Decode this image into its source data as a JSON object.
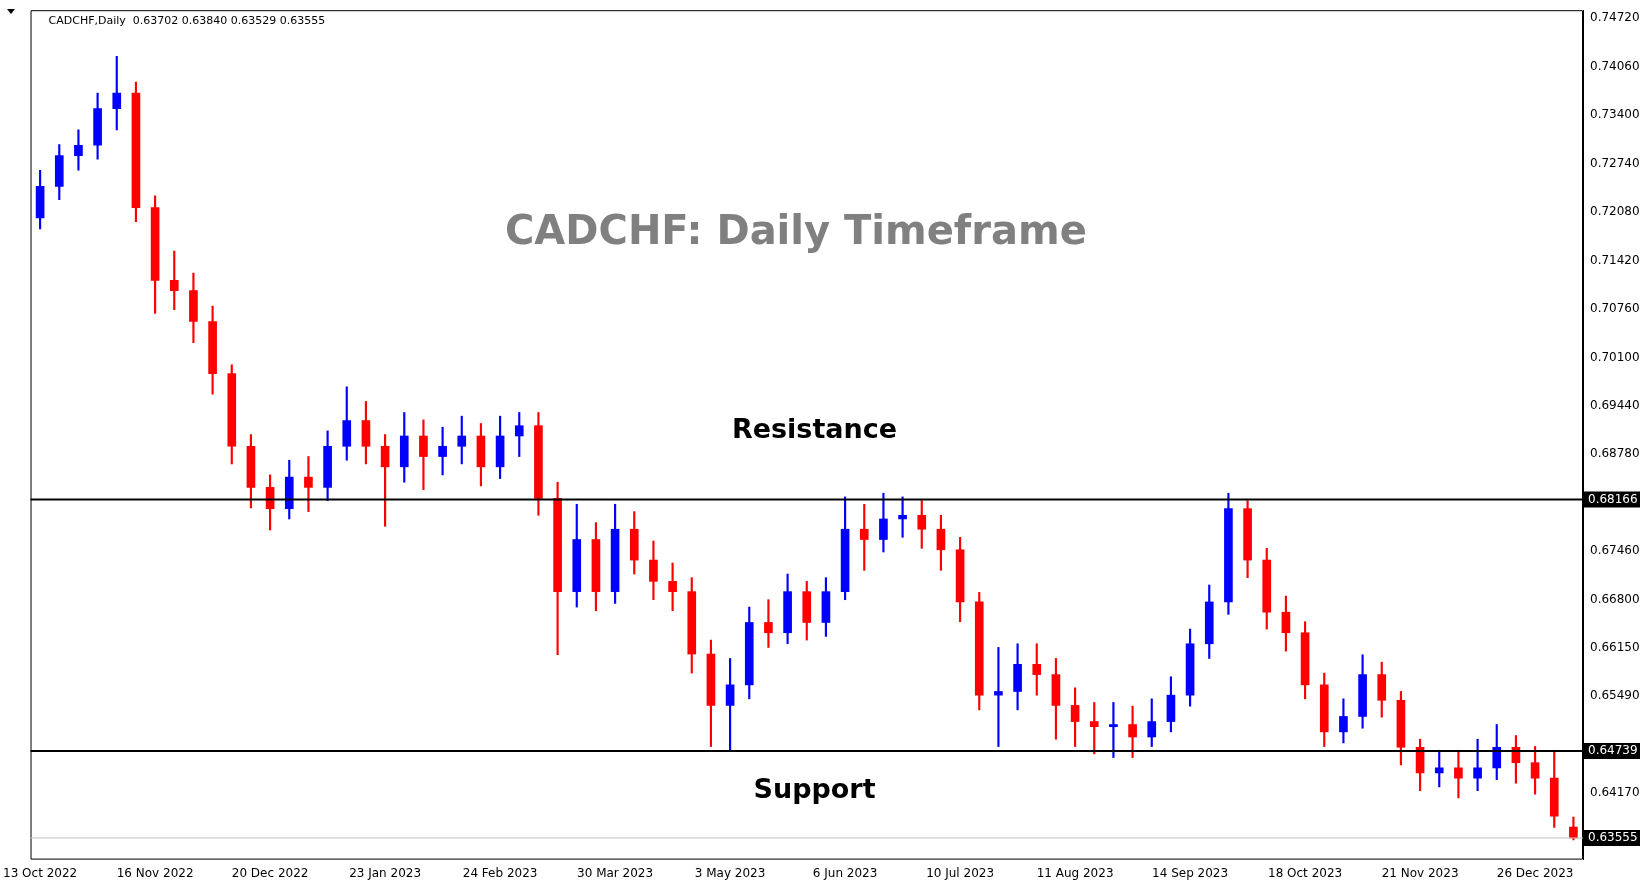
{
  "chart_data": {
    "type": "candlestick",
    "title": "CADCHF: Daily Timeframe",
    "subtitle": "CADCHF,Daily  0.63702 0.63840 0.63529 0.63555",
    "categories": [
      "13 Oct 2022",
      null,
      null,
      null,
      null,
      null,
      "16 Nov 2022",
      null,
      null,
      null,
      null,
      null,
      "20 Dec 2022",
      null,
      null,
      null,
      null,
      null,
      "23 Jan 2023",
      null,
      null,
      null,
      null,
      null,
      "24 Feb 2023",
      null,
      null,
      null,
      null,
      null,
      "30 Mar 2023",
      null,
      null,
      null,
      null,
      null,
      "3 May 2023",
      null,
      null,
      null,
      null,
      null,
      "6 Jun 2023",
      null,
      null,
      null,
      null,
      null,
      "10 Jul 2023",
      null,
      null,
      null,
      null,
      null,
      "11 Aug 2023",
      null,
      null,
      null,
      null,
      null,
      "14 Sep 2023",
      null,
      null,
      null,
      null,
      null,
      "18 Oct 2023",
      null,
      null,
      null,
      null,
      null,
      "21 Nov 2023",
      null,
      null,
      null,
      null,
      null,
      "26 Dec 2023",
      null,
      null
    ],
    "ohlc": [
      [
        0.72,
        0.7265,
        0.7185,
        0.7243
      ],
      [
        0.7243,
        0.73,
        0.7225,
        0.7285
      ],
      [
        0.7285,
        0.732,
        0.7265,
        0.7299
      ],
      [
        0.7299,
        0.737,
        0.728,
        0.7349
      ],
      [
        0.7349,
        0.742,
        0.732,
        0.737
      ],
      [
        0.737,
        0.7385,
        0.7195,
        0.7214
      ],
      [
        0.7214,
        0.723,
        0.707,
        0.7115
      ],
      [
        0.7115,
        0.7155,
        0.7075,
        0.7101
      ],
      [
        0.7101,
        0.7125,
        0.703,
        0.7059
      ],
      [
        0.7059,
        0.708,
        0.696,
        0.6988
      ],
      [
        0.6988,
        0.7,
        0.6865,
        0.6889
      ],
      [
        0.6889,
        0.6905,
        0.6805,
        0.6833
      ],
      [
        0.6833,
        0.685,
        0.6775,
        0.6804
      ],
      [
        0.6804,
        0.687,
        0.679,
        0.6847
      ],
      [
        0.6847,
        0.6875,
        0.68,
        0.6833
      ],
      [
        0.6833,
        0.691,
        0.6815,
        0.6889
      ],
      [
        0.6889,
        0.697,
        0.687,
        0.6924
      ],
      [
        0.6924,
        0.695,
        0.6865,
        0.6889
      ],
      [
        0.6889,
        0.6905,
        0.678,
        0.6861
      ],
      [
        0.6861,
        0.6935,
        0.684,
        0.6903
      ],
      [
        0.6903,
        0.6925,
        0.683,
        0.6875
      ],
      [
        0.6875,
        0.6915,
        0.685,
        0.6889
      ],
      [
        0.6889,
        0.693,
        0.6865,
        0.6903
      ],
      [
        0.6903,
        0.692,
        0.6835,
        0.6861
      ],
      [
        0.6861,
        0.693,
        0.6845,
        0.6903
      ],
      [
        0.6903,
        0.6935,
        0.6875,
        0.6917
      ],
      [
        0.6917,
        0.6935,
        0.6795,
        0.6818
      ],
      [
        0.6818,
        0.684,
        0.6605,
        0.6691
      ],
      [
        0.6691,
        0.681,
        0.667,
        0.6762
      ],
      [
        0.6762,
        0.6785,
        0.6665,
        0.6691
      ],
      [
        0.6691,
        0.681,
        0.6675,
        0.6776
      ],
      [
        0.6776,
        0.68,
        0.6715,
        0.6734
      ],
      [
        0.6734,
        0.676,
        0.668,
        0.6705
      ],
      [
        0.6705,
        0.673,
        0.6665,
        0.6691
      ],
      [
        0.6691,
        0.671,
        0.658,
        0.6606
      ],
      [
        0.6606,
        0.6625,
        0.648,
        0.6536
      ],
      [
        0.6536,
        0.66,
        0.6474,
        0.6564
      ],
      [
        0.6564,
        0.667,
        0.6545,
        0.6649
      ],
      [
        0.6649,
        0.668,
        0.6615,
        0.6635
      ],
      [
        0.6635,
        0.6715,
        0.662,
        0.6691
      ],
      [
        0.6691,
        0.6705,
        0.6625,
        0.6649
      ],
      [
        0.6649,
        0.671,
        0.663,
        0.6691
      ],
      [
        0.6691,
        0.682,
        0.668,
        0.6776
      ],
      [
        0.6776,
        0.681,
        0.672,
        0.6762
      ],
      [
        0.6762,
        0.6825,
        0.6745,
        0.679
      ],
      [
        0.679,
        0.682,
        0.6765,
        0.6795
      ],
      [
        0.6795,
        0.6815,
        0.675,
        0.6776
      ],
      [
        0.6776,
        0.6795,
        0.672,
        0.6748
      ],
      [
        0.6748,
        0.6765,
        0.665,
        0.6677
      ],
      [
        0.6677,
        0.669,
        0.653,
        0.655
      ],
      [
        0.655,
        0.6615,
        0.648,
        0.6555
      ],
      [
        0.6555,
        0.662,
        0.653,
        0.6592
      ],
      [
        0.6592,
        0.662,
        0.655,
        0.6578
      ],
      [
        0.6578,
        0.66,
        0.649,
        0.6536
      ],
      [
        0.6536,
        0.656,
        0.648,
        0.6514
      ],
      [
        0.6514,
        0.654,
        0.647,
        0.6507
      ],
      [
        0.6507,
        0.654,
        0.6465,
        0.651
      ],
      [
        0.651,
        0.6535,
        0.6465,
        0.6493
      ],
      [
        0.6493,
        0.6545,
        0.648,
        0.6514
      ],
      [
        0.6514,
        0.6575,
        0.65,
        0.655
      ],
      [
        0.655,
        0.664,
        0.6535,
        0.662
      ],
      [
        0.662,
        0.67,
        0.66,
        0.6677
      ],
      [
        0.6677,
        0.6825,
        0.666,
        0.6804
      ],
      [
        0.6804,
        0.6815,
        0.671,
        0.6734
      ],
      [
        0.6734,
        0.675,
        0.664,
        0.6663
      ],
      [
        0.6663,
        0.6685,
        0.661,
        0.6635
      ],
      [
        0.6635,
        0.665,
        0.6545,
        0.6564
      ],
      [
        0.6564,
        0.658,
        0.648,
        0.65
      ],
      [
        0.65,
        0.6545,
        0.6485,
        0.6521
      ],
      [
        0.6521,
        0.6605,
        0.6505,
        0.6578
      ],
      [
        0.6578,
        0.6595,
        0.652,
        0.6543
      ],
      [
        0.6543,
        0.6555,
        0.6455,
        0.6479
      ],
      [
        0.6479,
        0.649,
        0.642,
        0.6444
      ],
      [
        0.6444,
        0.6475,
        0.6425,
        0.6451
      ],
      [
        0.6451,
        0.6475,
        0.641,
        0.6437
      ],
      [
        0.6437,
        0.649,
        0.642,
        0.6451
      ],
      [
        0.6451,
        0.651,
        0.6435,
        0.6479
      ],
      [
        0.6479,
        0.6495,
        0.643,
        0.6458
      ],
      [
        0.6458,
        0.648,
        0.6415,
        0.6437
      ],
      [
        0.6437,
        0.6475,
        0.637,
        0.6385
      ],
      [
        0.63702,
        0.6384,
        0.63529,
        0.63555
      ]
    ],
    "colors": [
      "#0000ff",
      "#0000ff",
      "#0000ff",
      "#0000ff",
      "#0000ff",
      "#ff0000",
      "#ff0000",
      "#ff0000",
      "#ff0000",
      "#ff0000",
      "#ff0000",
      "#ff0000",
      "#ff0000",
      "#0000ff",
      "#ff0000",
      "#0000ff",
      "#0000ff",
      "#ff0000",
      "#ff0000",
      "#0000ff",
      "#ff0000",
      "#0000ff",
      "#0000ff",
      "#ff0000",
      "#0000ff",
      "#0000ff",
      "#ff0000",
      "#ff0000",
      "#0000ff",
      "#ff0000",
      "#0000ff",
      "#ff0000",
      "#ff0000",
      "#ff0000",
      "#ff0000",
      "#ff0000",
      "#0000ff",
      "#0000ff",
      "#ff0000",
      "#0000ff",
      "#ff0000",
      "#0000ff",
      "#0000ff",
      "#ff0000",
      "#0000ff",
      "#0000ff",
      "#ff0000",
      "#ff0000",
      "#ff0000",
      "#ff0000",
      "#0000ff",
      "#0000ff",
      "#ff0000",
      "#ff0000",
      "#ff0000",
      "#ff0000",
      "#0000ff",
      "#ff0000",
      "#0000ff",
      "#0000ff",
      "#0000ff",
      "#0000ff",
      "#0000ff",
      "#ff0000",
      "#ff0000",
      "#ff0000",
      "#ff0000",
      "#ff0000",
      "#0000ff",
      "#0000ff",
      "#ff0000",
      "#ff0000",
      "#ff0000",
      "#0000ff",
      "#ff0000",
      "#0000ff",
      "#0000ff",
      "#ff0000",
      "#ff0000",
      "#ff0000",
      "#ff0000"
    ],
    "ylim": [
      0.6326,
      0.7483
    ],
    "yticks": [
      {
        "value": 0.6417,
        "label": "0.64170"
      },
      {
        "value": 0.6549,
        "label": "0.65490"
      },
      {
        "value": 0.6615,
        "label": "0.66150"
      },
      {
        "value": 0.668,
        "label": "0.66800"
      },
      {
        "value": 0.6746,
        "label": "0.67460"
      },
      {
        "value": 0.6878,
        "label": "0.68780"
      },
      {
        "value": 0.6944,
        "label": "0.69440"
      },
      {
        "value": 0.701,
        "label": "0.70100"
      },
      {
        "value": 0.7076,
        "label": "0.70760"
      },
      {
        "value": 0.7142,
        "label": "0.71420"
      },
      {
        "value": 0.7208,
        "label": "0.72080"
      },
      {
        "value": 0.7274,
        "label": "0.72740"
      },
      {
        "value": 0.734,
        "label": "0.73400"
      },
      {
        "value": 0.7406,
        "label": "0.74060"
      },
      {
        "value": 0.7472,
        "label": "0.74720"
      }
    ],
    "ref_lines": [
      {
        "axis": "y",
        "value": 0.68166,
        "label": "0.68166",
        "color": "#000000"
      },
      {
        "axis": "y",
        "value": 0.64739,
        "label": "0.64739",
        "color": "#000000"
      },
      {
        "axis": "y",
        "value": 0.63555,
        "label": "0.63555",
        "color": "#c0c0c0"
      }
    ],
    "annotations": [
      "Resistance",
      "Support"
    ]
  }
}
